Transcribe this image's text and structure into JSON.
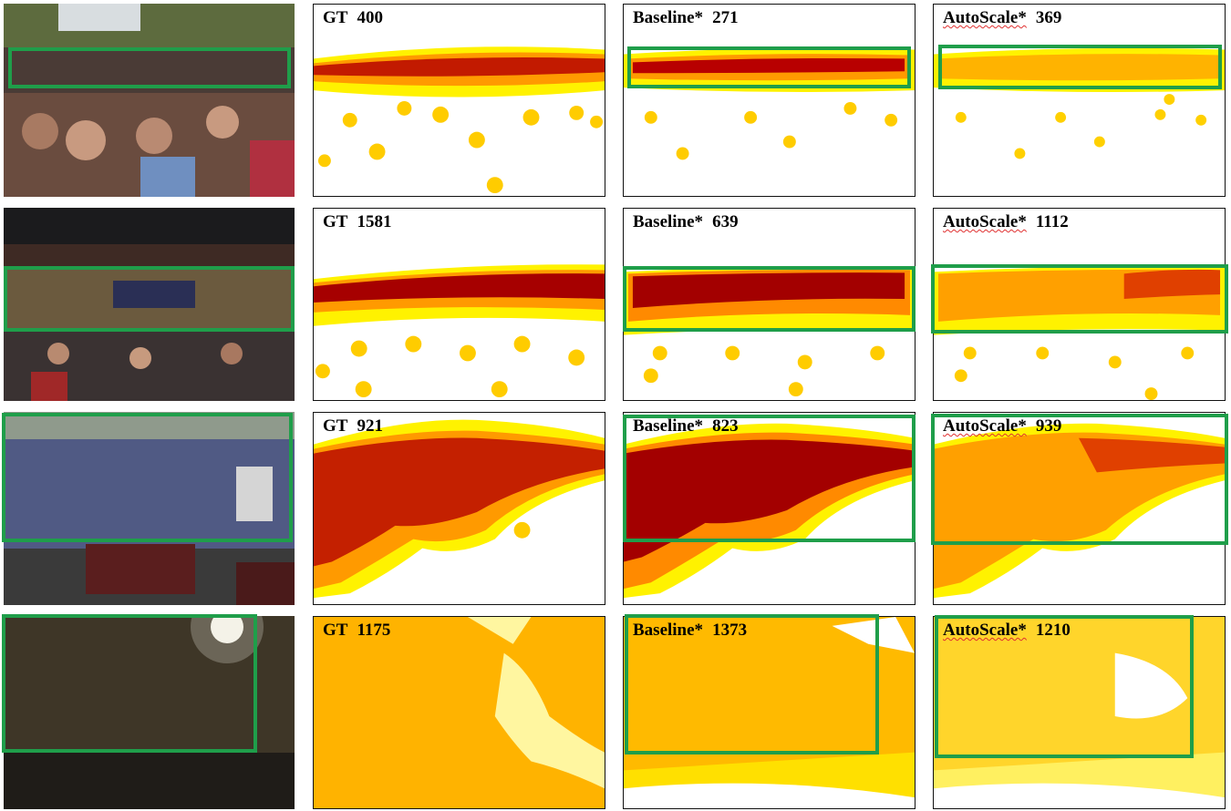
{
  "figure": {
    "colors": {
      "box": "#1f9e4a",
      "density_low": "#fff200",
      "density_mid": "#ff9a00",
      "density_high": "#b80000",
      "point": "#b3001b"
    },
    "rows": [
      {
        "photo": "photo-sparse-crowd-close",
        "gt": {
          "label": "GT",
          "count": "400"
        },
        "baseline": {
          "label": "Baseline*",
          "count": "271"
        },
        "autoscale": {
          "label": "AutoScale*",
          "count": "369"
        }
      },
      {
        "photo": "photo-arena-crowd",
        "gt": {
          "label": "GT",
          "count": "1581"
        },
        "baseline": {
          "label": "Baseline*",
          "count": "639"
        },
        "autoscale": {
          "label": "AutoScale*",
          "count": "1112"
        }
      },
      {
        "photo": "photo-rally-crowd",
        "gt": {
          "label": "GT",
          "count": "921"
        },
        "baseline": {
          "label": "Baseline*",
          "count": "823"
        },
        "autoscale": {
          "label": "AutoScale*",
          "count": "939"
        }
      },
      {
        "photo": "photo-dense-crowd-aerial",
        "gt": {
          "label": "GT",
          "count": "1175"
        },
        "baseline": {
          "label": "Baseline*",
          "count": "1373"
        },
        "autoscale": {
          "label": "AutoScale*",
          "count": "1210"
        }
      }
    ]
  }
}
